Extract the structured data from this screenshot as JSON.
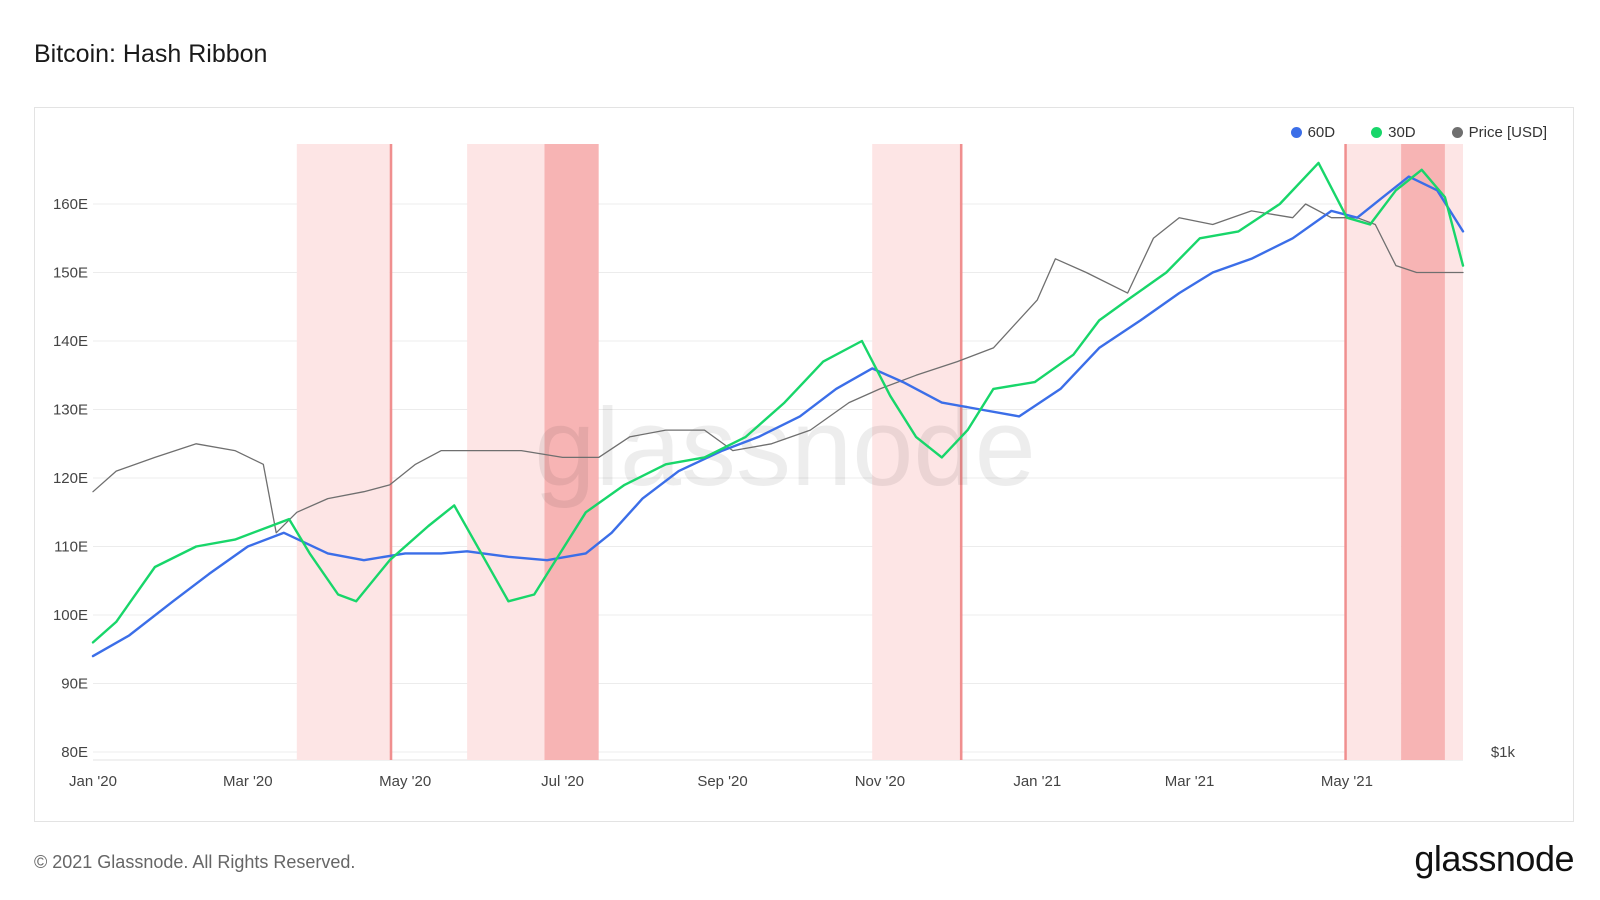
{
  "title": "Bitcoin: Hash Ribbon",
  "footer": {
    "copyright": "© 2021 Glassnode. All Rights Reserved.",
    "brand": "glassnode"
  },
  "watermark": "glassnode",
  "colors": {
    "sixty": "#3b6ee8",
    "thirty": "#18d66a",
    "price": "#6f6f6f",
    "band_light": "#fde5e5",
    "band_dark": "#f7b4b4",
    "band_line": "#f08f8f",
    "grid": "#ececec"
  },
  "chart_data": {
    "type": "line",
    "title": "Bitcoin: Hash Ribbon",
    "x_range": [
      "2020-01-01",
      "2021-06-30"
    ],
    "x_ticks": [
      {
        "date": "2020-01-01",
        "label": "Jan '20"
      },
      {
        "date": "2020-03-01",
        "label": "Mar '20"
      },
      {
        "date": "2020-05-01",
        "label": "May '20"
      },
      {
        "date": "2020-07-01",
        "label": "Jul '20"
      },
      {
        "date": "2020-09-01",
        "label": "Sep '20"
      },
      {
        "date": "2020-11-01",
        "label": "Nov '20"
      },
      {
        "date": "2021-01-01",
        "label": "Jan '21"
      },
      {
        "date": "2021-03-01",
        "label": "Mar '21"
      },
      {
        "date": "2021-05-01",
        "label": "May '21"
      }
    ],
    "y_left": {
      "min": 80,
      "max": 170,
      "ticks": [
        80,
        90,
        100,
        110,
        120,
        130,
        140,
        150,
        160
      ],
      "tick_labels": [
        "80E",
        "90E",
        "100E",
        "110E",
        "120E",
        "130E",
        "140E",
        "150E",
        "160E"
      ]
    },
    "y_right": {
      "tick_label": "$1k"
    },
    "grid": true,
    "legend": {
      "position": "top-right",
      "items": [
        "60D",
        "30D",
        "Price [USD]"
      ]
    },
    "bands": [
      {
        "start": "2020-03-20",
        "end": "2020-04-25",
        "shade": "light"
      },
      {
        "start": "2020-04-25",
        "end": "2020-04-26",
        "shade": "line"
      },
      {
        "start": "2020-05-25",
        "end": "2020-06-24",
        "shade": "light"
      },
      {
        "start": "2020-06-24",
        "end": "2020-07-15",
        "shade": "dark"
      },
      {
        "start": "2020-10-29",
        "end": "2020-12-02",
        "shade": "light"
      },
      {
        "start": "2020-12-02",
        "end": "2020-12-03",
        "shade": "line"
      },
      {
        "start": "2021-04-30",
        "end": "2021-05-01",
        "shade": "line"
      },
      {
        "start": "2021-05-01",
        "end": "2021-05-22",
        "shade": "light"
      },
      {
        "start": "2021-05-22",
        "end": "2021-06-08",
        "shade": "dark"
      },
      {
        "start": "2021-06-08",
        "end": "2021-06-15",
        "shade": "light"
      }
    ],
    "series": [
      {
        "name": "60D",
        "color": "#3b6ee8",
        "points": [
          [
            "2020-01-01",
            94
          ],
          [
            "2020-01-15",
            97
          ],
          [
            "2020-02-01",
            102
          ],
          [
            "2020-02-15",
            106
          ],
          [
            "2020-03-01",
            110
          ],
          [
            "2020-03-15",
            112
          ],
          [
            "2020-04-01",
            109
          ],
          [
            "2020-04-15",
            108
          ],
          [
            "2020-05-01",
            109
          ],
          [
            "2020-05-15",
            109
          ],
          [
            "2020-05-25",
            109.3
          ],
          [
            "2020-06-10",
            108.5
          ],
          [
            "2020-06-25",
            108
          ],
          [
            "2020-07-10",
            109
          ],
          [
            "2020-07-20",
            112
          ],
          [
            "2020-08-01",
            117
          ],
          [
            "2020-08-15",
            121
          ],
          [
            "2020-09-01",
            124
          ],
          [
            "2020-09-15",
            126
          ],
          [
            "2020-10-01",
            129
          ],
          [
            "2020-10-15",
            133
          ],
          [
            "2020-10-29",
            136
          ],
          [
            "2020-11-10",
            134
          ],
          [
            "2020-11-25",
            131
          ],
          [
            "2020-12-10",
            130
          ],
          [
            "2020-12-25",
            129
          ],
          [
            "2021-01-10",
            133
          ],
          [
            "2021-01-25",
            139
          ],
          [
            "2021-02-10",
            143
          ],
          [
            "2021-02-25",
            147
          ],
          [
            "2021-03-10",
            150
          ],
          [
            "2021-03-25",
            152
          ],
          [
            "2021-04-10",
            155
          ],
          [
            "2021-04-25",
            159
          ],
          [
            "2021-05-05",
            158
          ],
          [
            "2021-05-15",
            161
          ],
          [
            "2021-05-25",
            164
          ],
          [
            "2021-06-05",
            162
          ],
          [
            "2021-06-15",
            156
          ]
        ]
      },
      {
        "name": "30D",
        "color": "#18d66a",
        "points": [
          [
            "2020-01-01",
            96
          ],
          [
            "2020-01-10",
            99
          ],
          [
            "2020-01-25",
            107
          ],
          [
            "2020-02-10",
            110
          ],
          [
            "2020-02-25",
            111
          ],
          [
            "2020-03-10",
            113
          ],
          [
            "2020-03-17",
            114
          ],
          [
            "2020-03-25",
            109
          ],
          [
            "2020-04-05",
            103
          ],
          [
            "2020-04-12",
            102
          ],
          [
            "2020-04-25",
            108
          ],
          [
            "2020-05-10",
            113
          ],
          [
            "2020-05-20",
            116
          ],
          [
            "2020-06-01",
            108
          ],
          [
            "2020-06-10",
            102
          ],
          [
            "2020-06-20",
            103
          ],
          [
            "2020-06-30",
            109
          ],
          [
            "2020-07-10",
            115
          ],
          [
            "2020-07-25",
            119
          ],
          [
            "2020-08-10",
            122
          ],
          [
            "2020-08-25",
            123
          ],
          [
            "2020-09-10",
            126
          ],
          [
            "2020-09-25",
            131
          ],
          [
            "2020-10-10",
            137
          ],
          [
            "2020-10-25",
            140
          ],
          [
            "2020-11-05",
            132
          ],
          [
            "2020-11-15",
            126
          ],
          [
            "2020-11-25",
            123
          ],
          [
            "2020-12-05",
            127
          ],
          [
            "2020-12-15",
            133
          ],
          [
            "2020-12-31",
            134
          ],
          [
            "2021-01-15",
            138
          ],
          [
            "2021-01-25",
            143
          ],
          [
            "2021-02-05",
            146
          ],
          [
            "2021-02-20",
            150
          ],
          [
            "2021-03-05",
            155
          ],
          [
            "2021-03-20",
            156
          ],
          [
            "2021-04-05",
            160
          ],
          [
            "2021-04-20",
            166
          ],
          [
            "2021-05-01",
            158
          ],
          [
            "2021-05-10",
            157
          ],
          [
            "2021-05-20",
            162
          ],
          [
            "2021-05-30",
            165
          ],
          [
            "2021-06-08",
            161
          ],
          [
            "2021-06-15",
            151
          ]
        ]
      },
      {
        "name": "Price [USD]",
        "color": "#6f6f6f",
        "points": [
          [
            "2020-01-01",
            118
          ],
          [
            "2020-01-10",
            121
          ],
          [
            "2020-01-25",
            123
          ],
          [
            "2020-02-10",
            125
          ],
          [
            "2020-02-25",
            124
          ],
          [
            "2020-03-07",
            122
          ],
          [
            "2020-03-12",
            112
          ],
          [
            "2020-03-20",
            115
          ],
          [
            "2020-04-01",
            117
          ],
          [
            "2020-04-15",
            118
          ],
          [
            "2020-04-25",
            119
          ],
          [
            "2020-05-05",
            122
          ],
          [
            "2020-05-15",
            124
          ],
          [
            "2020-06-01",
            124
          ],
          [
            "2020-06-15",
            124
          ],
          [
            "2020-07-01",
            123
          ],
          [
            "2020-07-15",
            123
          ],
          [
            "2020-07-27",
            126
          ],
          [
            "2020-08-10",
            127
          ],
          [
            "2020-08-25",
            127
          ],
          [
            "2020-09-05",
            124
          ],
          [
            "2020-09-20",
            125
          ],
          [
            "2020-10-05",
            127
          ],
          [
            "2020-10-20",
            131
          ],
          [
            "2020-11-01",
            133
          ],
          [
            "2020-11-15",
            135
          ],
          [
            "2020-12-01",
            137
          ],
          [
            "2020-12-15",
            139
          ],
          [
            "2021-01-01",
            146
          ],
          [
            "2021-01-08",
            152
          ],
          [
            "2021-01-20",
            150
          ],
          [
            "2021-02-05",
            147
          ],
          [
            "2021-02-15",
            155
          ],
          [
            "2021-02-25",
            158
          ],
          [
            "2021-03-10",
            157
          ],
          [
            "2021-03-25",
            159
          ],
          [
            "2021-04-10",
            158
          ],
          [
            "2021-04-15",
            160
          ],
          [
            "2021-04-25",
            158
          ],
          [
            "2021-05-05",
            158
          ],
          [
            "2021-05-12",
            157
          ],
          [
            "2021-05-20",
            151
          ],
          [
            "2021-05-28",
            150
          ],
          [
            "2021-06-05",
            150
          ],
          [
            "2021-06-15",
            150
          ]
        ]
      }
    ]
  }
}
